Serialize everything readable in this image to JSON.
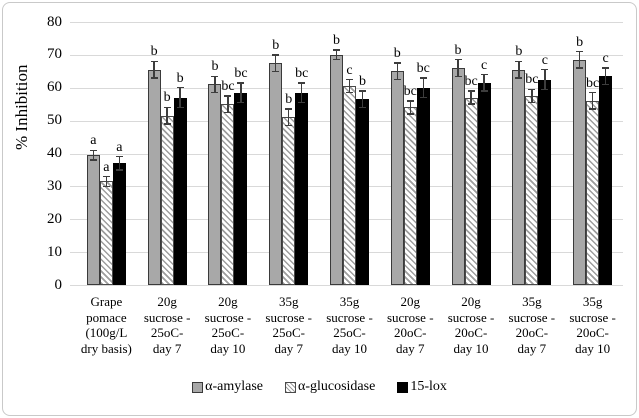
{
  "figure": {
    "background": "#ffffff",
    "border_color": "#c9c9c9"
  },
  "chart_data": {
    "type": "bar",
    "title": "",
    "xlabel": "",
    "ylabel": "% Inhibition",
    "ylim": [
      0,
      80
    ],
    "yticks": [
      0,
      10,
      20,
      30,
      40,
      50,
      60,
      70,
      80
    ],
    "grid": true,
    "legend_position": "bottom-center",
    "categories": [
      "Grape pomace (100g/L dry basis)",
      "20g sucrose - 25oC- day 7",
      "20g sucrose - 25oC- day 10",
      "35g sucrose - 25oC- day 7",
      "35g sucrose - 25oC- day 10",
      "20g sucrose - 20oC- day 7",
      "20g sucrose - 20oC- day 10",
      "35g sucrose - 20oC- day 7",
      "35g sucrose - 20oC- day 10"
    ],
    "categories_lines": [
      [
        "Grape",
        "pomace",
        "(100g/L",
        "dry basis)"
      ],
      [
        "20g",
        "sucrose -",
        "25oC-",
        "day 7"
      ],
      [
        "20g",
        "sucrose -",
        "25oC-",
        "day 10"
      ],
      [
        "35g",
        "sucrose -",
        "25oC-",
        "day 7"
      ],
      [
        "35g",
        "sucrose -",
        "25oC-",
        "day 10"
      ],
      [
        "20g",
        "sucrose -",
        "20oC-",
        "day 7"
      ],
      [
        "20g",
        "sucrose -",
        "20oC-",
        "day 10"
      ],
      [
        "35g",
        "sucrose -",
        "20oC-",
        "day 7"
      ],
      [
        "35g",
        "sucrose -",
        "20oC-",
        "day 10"
      ]
    ],
    "series": [
      {
        "name": "α-amylase",
        "pattern": "solid-gray",
        "color": "#a8a8a8",
        "values": [
          39.5,
          65.5,
          61.0,
          67.5,
          70.0,
          65.0,
          66.0,
          65.5,
          68.5
        ],
        "errors": [
          1.5,
          2.5,
          2.5,
          2.5,
          1.5,
          2.5,
          2.5,
          2.5,
          2.5
        ],
        "letters": [
          "a",
          "b",
          "b",
          "b",
          "b",
          "b",
          "b",
          "b",
          "b"
        ]
      },
      {
        "name": "α-glucosidase",
        "pattern": "diagonal-hatch",
        "color": "#ffffff",
        "stripe_color": "#9e9e9e",
        "values": [
          31.5,
          51.5,
          55.0,
          51.0,
          60.5,
          54.0,
          57.0,
          57.5,
          56.0
        ],
        "errors": [
          1.5,
          2.5,
          2.5,
          2.5,
          2.0,
          2.0,
          2.0,
          2.0,
          2.5
        ],
        "letters": [
          "a",
          "b",
          "bc",
          "b",
          "c",
          "bc",
          "bc",
          "bc",
          "bc"
        ]
      },
      {
        "name": "15-lox",
        "pattern": "solid-black",
        "color": "#000000",
        "values": [
          37.0,
          57.0,
          58.5,
          58.5,
          56.5,
          60.0,
          61.5,
          62.5,
          63.5
        ],
        "errors": [
          2.0,
          3.0,
          3.0,
          3.0,
          2.5,
          3.0,
          2.5,
          3.0,
          2.5
        ],
        "letters": [
          "a",
          "b",
          "bc",
          "bc",
          "b",
          "bc",
          "c",
          "c",
          "c"
        ]
      }
    ]
  }
}
